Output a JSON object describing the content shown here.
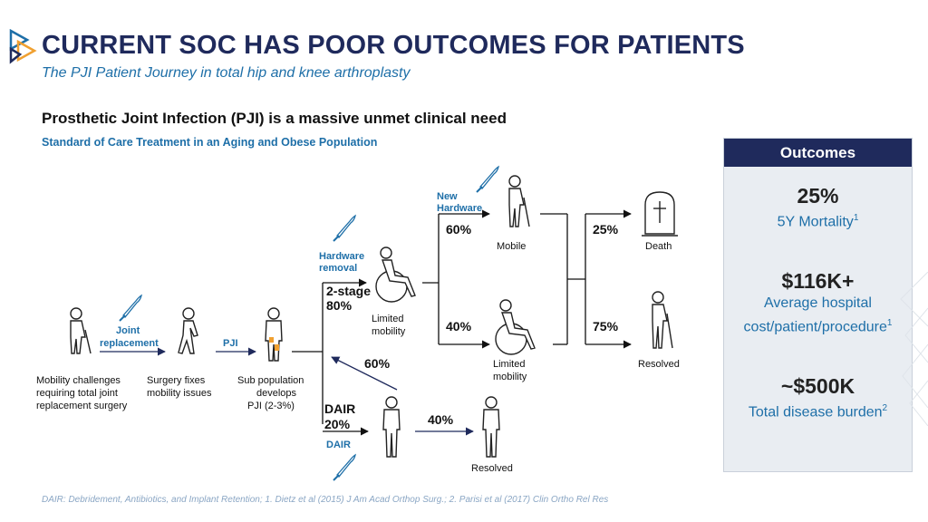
{
  "header": {
    "title": "CURRENT SOC HAS POOR OUTCOMES FOR PATIENTS",
    "subtitle": "The PJI Patient Journey in total hip and knee arthroplasty"
  },
  "content": {
    "headline": "Prosthetic Joint Infection (PJI) is a massive unmet clinical need",
    "subheadline": "Standard of Care Treatment in an Aging and Obese Population"
  },
  "flow": {
    "stage1": [
      "Mobility challenges",
      "requiring total joint",
      "replacement surgery"
    ],
    "step1": [
      "Joint",
      "replacement"
    ],
    "stage2": [
      "Surgery fixes",
      "mobility issues"
    ],
    "step2": "PJI",
    "stage3": [
      "Sub population",
      "develops",
      "PJI (2-3%)"
    ],
    "hardware_removal": [
      "Hardware",
      "removal"
    ],
    "two_stage": [
      "2-stage",
      "80%"
    ],
    "limited_mobility_1": [
      "Limited",
      "mobility"
    ],
    "new_hardware": [
      "New",
      "Hardware"
    ],
    "pct_60_mobile": "60%",
    "mobile": "Mobile",
    "pct_40": "40%",
    "limited_mobility_2": [
      "Limited",
      "mobility"
    ],
    "pct_25": "25%",
    "death": "Death",
    "pct_75": "75%",
    "resolved_1": "Resolved",
    "pct_60_back": "60%",
    "dair_branch": [
      "DAIR",
      "20%"
    ],
    "dair_label": "DAIR",
    "pct_40_dair": "40%",
    "resolved_2": "Resolved"
  },
  "outcomes": {
    "header": "Outcomes",
    "items": [
      {
        "value": "25%",
        "label": "5Y Mortality",
        "sup": "1"
      },
      {
        "value": "$116K+",
        "label_line1": "Average hospital",
        "label_line2": "cost/patient/procedure",
        "sup": "1"
      },
      {
        "value": "~$500K",
        "label": "Total disease burden",
        "sup": "2"
      }
    ]
  },
  "footnote": "DAIR: Debridement, Antibiotics, and Implant Retention; 1. Dietz et al (2015) J Am Acad Orthop Surg.; 2. Parisi et al (2017) Clin Ortho Rel Res",
  "colors": {
    "navy": "#1f2a5c",
    "blue": "#1e6fa8",
    "panel": "#e9edf2",
    "infection": "#f0a030"
  },
  "icons": [
    "logo-icon",
    "elderly-cane-icon",
    "walking-person-icon",
    "standing-person-icon",
    "wheelchair-icon",
    "scalpel-icon",
    "tombstone-icon"
  ]
}
